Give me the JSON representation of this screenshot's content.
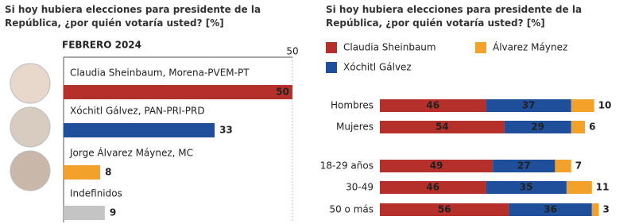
{
  "chart_data": [
    {
      "type": "bar",
      "title": "Si hoy hubiera elecciones para presidente de la República, ¿por quién votaría usted? [%]",
      "subtitle": "FEBRERO 2024",
      "categories": [
        "Claudia Sheinbaum, Morena-PVEM-PT",
        "Xóchitl Gálvez, PAN-PRI-PRD",
        "Jorge Álvarez Máynez, MC",
        "Indefinidos"
      ],
      "values": [
        50,
        33,
        8,
        9
      ],
      "colors": [
        "#b5302a",
        "#1f4f9a",
        "#f2a12a",
        "#c4c4c4"
      ],
      "xlim": [
        0,
        50
      ],
      "xticks": [
        50
      ]
    },
    {
      "type": "stacked-bar",
      "title": "Si hoy hubiera elecciones para presidente de la República, ¿por quién votaría usted? [%]",
      "categories": [
        "Hombres",
        "Mujeres",
        "18-29 años",
        "30-49",
        "50 o más"
      ],
      "series": [
        {
          "name": "Claudia Sheinbaum",
          "color": "#b5302a",
          "values": [
            46,
            54,
            49,
            46,
            56
          ]
        },
        {
          "name": "Xóchitl Gálvez",
          "color": "#1f4f9a",
          "values": [
            37,
            29,
            27,
            35,
            36
          ]
        },
        {
          "name": "Álvarez Máynez",
          "color": "#f2a12a",
          "values": [
            10,
            6,
            7,
            11,
            3
          ]
        }
      ],
      "xlim": [
        0,
        100
      ]
    }
  ]
}
